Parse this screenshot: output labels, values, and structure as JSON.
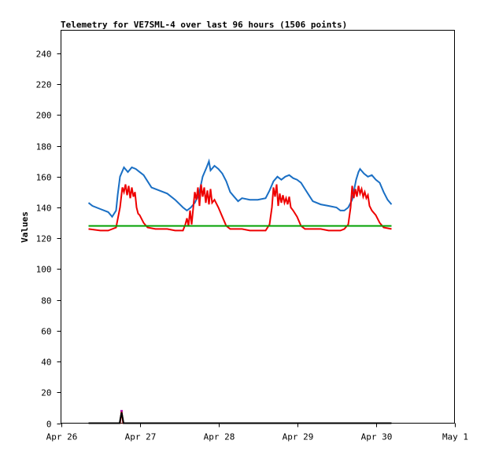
{
  "chart_data": {
    "type": "line",
    "title": "Telemetry for VE7SML-4 over last 96 hours (1506 points)",
    "ylabel": "Values",
    "xlabel": "",
    "ylim": [
      0,
      255
    ],
    "yticks": [
      0,
      20,
      40,
      60,
      80,
      100,
      120,
      140,
      160,
      180,
      200,
      220,
      240
    ],
    "x_unit": "days since Apr 26 00:00",
    "xlim": [
      0,
      5
    ],
    "xticks": [
      {
        "value": 0,
        "label": "Apr 26"
      },
      {
        "value": 1,
        "label": "Apr 27"
      },
      {
        "value": 2,
        "label": "Apr 28"
      },
      {
        "value": 3,
        "label": "Apr 29"
      },
      {
        "value": 4,
        "label": "Apr 30"
      },
      {
        "value": 5,
        "label": "May 1"
      }
    ],
    "grid": false,
    "legend": "none",
    "series": [
      {
        "color": "#1a6fc4",
        "points": [
          [
            0.35,
            143
          ],
          [
            0.4,
            141
          ],
          [
            0.5,
            139
          ],
          [
            0.6,
            137
          ],
          [
            0.65,
            134
          ],
          [
            0.7,
            138
          ],
          [
            0.72,
            148
          ],
          [
            0.75,
            160
          ],
          [
            0.8,
            166
          ],
          [
            0.85,
            163
          ],
          [
            0.9,
            166
          ],
          [
            0.95,
            165
          ],
          [
            1.0,
            163
          ],
          [
            1.05,
            161
          ],
          [
            1.1,
            157
          ],
          [
            1.15,
            153
          ],
          [
            1.25,
            151
          ],
          [
            1.35,
            149
          ],
          [
            1.45,
            145
          ],
          [
            1.55,
            140
          ],
          [
            1.6,
            138
          ],
          [
            1.65,
            140
          ],
          [
            1.7,
            143
          ],
          [
            1.75,
            148
          ],
          [
            1.8,
            160
          ],
          [
            1.85,
            166
          ],
          [
            1.88,
            170
          ],
          [
            1.9,
            164
          ],
          [
            1.95,
            167
          ],
          [
            2.0,
            165
          ],
          [
            2.05,
            162
          ],
          [
            2.1,
            157
          ],
          [
            2.15,
            150
          ],
          [
            2.2,
            147
          ],
          [
            2.25,
            144
          ],
          [
            2.3,
            146
          ],
          [
            2.4,
            145
          ],
          [
            2.5,
            145
          ],
          [
            2.6,
            146
          ],
          [
            2.65,
            151
          ],
          [
            2.7,
            157
          ],
          [
            2.75,
            160
          ],
          [
            2.8,
            158
          ],
          [
            2.85,
            160
          ],
          [
            2.9,
            161
          ],
          [
            2.95,
            159
          ],
          [
            3.0,
            158
          ],
          [
            3.05,
            156
          ],
          [
            3.1,
            152
          ],
          [
            3.15,
            148
          ],
          [
            3.2,
            144
          ],
          [
            3.3,
            142
          ],
          [
            3.4,
            141
          ],
          [
            3.5,
            140
          ],
          [
            3.55,
            138
          ],
          [
            3.6,
            138
          ],
          [
            3.65,
            140
          ],
          [
            3.7,
            145
          ],
          [
            3.75,
            158
          ],
          [
            3.78,
            163
          ],
          [
            3.8,
            165
          ],
          [
            3.85,
            162
          ],
          [
            3.9,
            160
          ],
          [
            3.95,
            161
          ],
          [
            4.0,
            158
          ],
          [
            4.05,
            156
          ],
          [
            4.1,
            150
          ],
          [
            4.15,
            145
          ],
          [
            4.2,
            142
          ]
        ]
      },
      {
        "color": "#ee0000",
        "points": [
          [
            0.35,
            126
          ],
          [
            0.5,
            125
          ],
          [
            0.6,
            125
          ],
          [
            0.7,
            127
          ],
          [
            0.75,
            140
          ],
          [
            0.78,
            153
          ],
          [
            0.8,
            150
          ],
          [
            0.82,
            155
          ],
          [
            0.84,
            148
          ],
          [
            0.86,
            154
          ],
          [
            0.88,
            146
          ],
          [
            0.9,
            153
          ],
          [
            0.92,
            147
          ],
          [
            0.94,
            150
          ],
          [
            0.96,
            140
          ],
          [
            0.98,
            136
          ],
          [
            1.0,
            135
          ],
          [
            1.05,
            130
          ],
          [
            1.1,
            127
          ],
          [
            1.2,
            126
          ],
          [
            1.35,
            126
          ],
          [
            1.45,
            125
          ],
          [
            1.5,
            125
          ],
          [
            1.55,
            125
          ],
          [
            1.58,
            129
          ],
          [
            1.6,
            133
          ],
          [
            1.62,
            128
          ],
          [
            1.64,
            138
          ],
          [
            1.66,
            129
          ],
          [
            1.7,
            150
          ],
          [
            1.72,
            145
          ],
          [
            1.74,
            153
          ],
          [
            1.76,
            141
          ],
          [
            1.78,
            155
          ],
          [
            1.8,
            147
          ],
          [
            1.82,
            153
          ],
          [
            1.84,
            143
          ],
          [
            1.86,
            151
          ],
          [
            1.88,
            142
          ],
          [
            1.9,
            152
          ],
          [
            1.92,
            143
          ],
          [
            1.95,
            145
          ],
          [
            2.0,
            140
          ],
          [
            2.05,
            134
          ],
          [
            2.1,
            128
          ],
          [
            2.15,
            126
          ],
          [
            2.3,
            126
          ],
          [
            2.4,
            125
          ],
          [
            2.5,
            125
          ],
          [
            2.6,
            125
          ],
          [
            2.65,
            129
          ],
          [
            2.68,
            140
          ],
          [
            2.7,
            153
          ],
          [
            2.72,
            147
          ],
          [
            2.74,
            155
          ],
          [
            2.76,
            141
          ],
          [
            2.78,
            149
          ],
          [
            2.8,
            143
          ],
          [
            2.82,
            148
          ],
          [
            2.84,
            143
          ],
          [
            2.86,
            146
          ],
          [
            2.88,
            142
          ],
          [
            2.9,
            147
          ],
          [
            2.92,
            140
          ],
          [
            2.95,
            138
          ],
          [
            3.0,
            134
          ],
          [
            3.05,
            128
          ],
          [
            3.1,
            126
          ],
          [
            3.3,
            126
          ],
          [
            3.4,
            125
          ],
          [
            3.55,
            125
          ],
          [
            3.6,
            126
          ],
          [
            3.65,
            129
          ],
          [
            3.68,
            140
          ],
          [
            3.7,
            154
          ],
          [
            3.72,
            146
          ],
          [
            3.74,
            152
          ],
          [
            3.76,
            147
          ],
          [
            3.78,
            154
          ],
          [
            3.8,
            149
          ],
          [
            3.82,
            152
          ],
          [
            3.84,
            147
          ],
          [
            3.86,
            150
          ],
          [
            3.88,
            146
          ],
          [
            3.9,
            148
          ],
          [
            3.92,
            141
          ],
          [
            3.95,
            138
          ],
          [
            4.0,
            135
          ],
          [
            4.05,
            130
          ],
          [
            4.1,
            127
          ],
          [
            4.2,
            126
          ]
        ]
      },
      {
        "color": "#00a000",
        "points": [
          [
            0.35,
            128
          ],
          [
            4.2,
            128
          ]
        ]
      },
      {
        "color": "#c00000",
        "points": [
          [
            0.35,
            0
          ],
          [
            0.75,
            0
          ],
          [
            0.76,
            4
          ],
          [
            0.77,
            8
          ],
          [
            0.78,
            4
          ],
          [
            0.79,
            0
          ],
          [
            4.2,
            0
          ]
        ]
      },
      {
        "color": "#000000",
        "points": [
          [
            0.35,
            0
          ],
          [
            0.745,
            0
          ],
          [
            0.755,
            3
          ],
          [
            0.77,
            7
          ],
          [
            0.785,
            3
          ],
          [
            0.795,
            0
          ],
          [
            4.2,
            0
          ]
        ]
      },
      {
        "color": "#b000b0",
        "points": [
          [
            0.755,
            8
          ],
          [
            0.785,
            8
          ]
        ]
      }
    ]
  }
}
